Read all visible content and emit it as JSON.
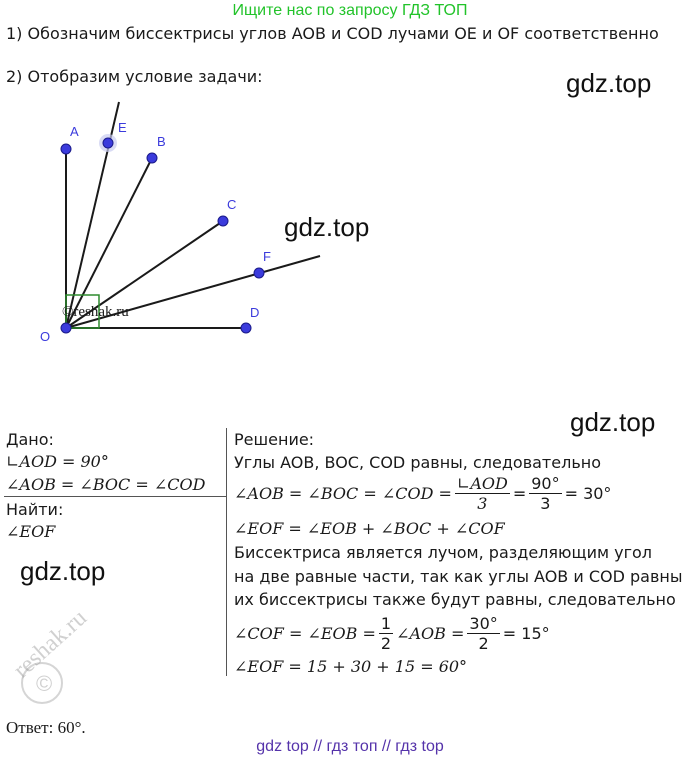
{
  "header_banner": "Ищите нас по запросу ГДЗ ТОП",
  "step1": "1) Обозначим биссектрисы углов AOB и COD лучами OE и OF соответственно",
  "step2": "2) Отобразим условие задачи:",
  "watermarks": {
    "gdz1": "gdz.top",
    "gdz2": "gdz.top",
    "gdz3": "gdz.top",
    "gdz4": "gdz.top",
    "reshak": "reshak.ru"
  },
  "diagram": {
    "points": {
      "A": "A",
      "E": "E",
      "B": "B",
      "C": "C",
      "F": "F",
      "D": "D",
      "O": "O"
    },
    "copyright": "©reshak.ru",
    "colors": {
      "point": "#3b3bdc",
      "line": "#1a1a1a",
      "right_angle": "#2e8b2e"
    }
  },
  "given": {
    "title": "Дано:",
    "line1": "∟AOD = 90°",
    "line2": "∠AOB = ∠BOC = ∠COD"
  },
  "find": {
    "title": "Найти:",
    "line1": "∠EOF"
  },
  "solution": {
    "title": "Решение:",
    "line1": "Углы AOB, BOC, COD равны, следовательно",
    "eq1_left": "∠AOB = ∠BOC = ∠COD =",
    "eq1_frac1_num": "∟AOD",
    "eq1_frac1_den": "3",
    "eq1_frac2_num": "90°",
    "eq1_frac2_den": "3",
    "eq1_right": "= 30°",
    "line3": "∠EOF = ∠EOB + ∠BOC + ∠COF",
    "line4": "Биссектриса является лучом, разделяющим угол",
    "line5": "на две равные части, так как углы AOB и COD равны",
    "line6": "их биссектрисы также будут равны, следовательно",
    "eq2_left": "∠COF = ∠EOB =",
    "eq2_frac1_num": "1",
    "eq2_frac1_den": "2",
    "eq2_mid": "∠AOB =",
    "eq2_frac2_num": "30°",
    "eq2_frac2_den": "2",
    "eq2_right": "= 15°",
    "line8": "∠EOF = 15 + 30 + 15 = 60°"
  },
  "answer": "Ответ: 60°.",
  "footer": "gdz top  //  гдз топ  //  гдз top"
}
